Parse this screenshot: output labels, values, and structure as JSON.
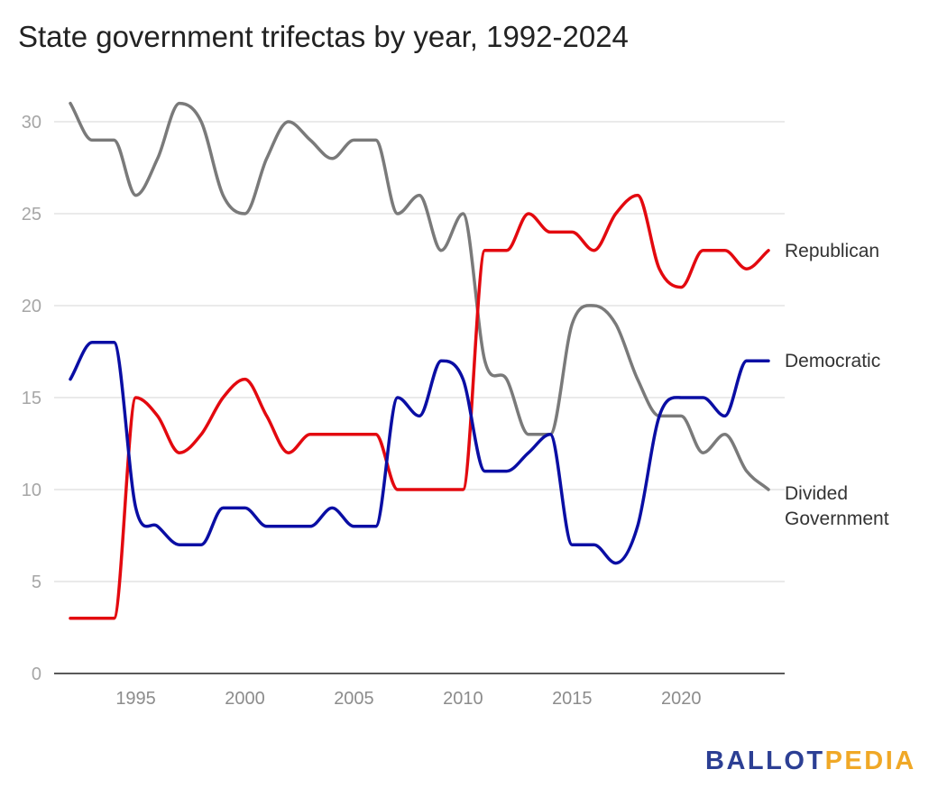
{
  "chart_data": {
    "type": "line",
    "title": "State government trifectas by year, 1992-2024",
    "xlabel": "",
    "ylabel": "",
    "x": [
      1992,
      1993,
      1994,
      1995,
      1996,
      1997,
      1998,
      1999,
      2000,
      2001,
      2002,
      2003,
      2004,
      2005,
      2006,
      2007,
      2008,
      2009,
      2010,
      2011,
      2012,
      2013,
      2014,
      2015,
      2016,
      2017,
      2018,
      2019,
      2020,
      2021,
      2022,
      2023,
      2024
    ],
    "xlim": [
      1992,
      2024
    ],
    "ylim": [
      0,
      32
    ],
    "x_ticks": [
      1995,
      2000,
      2005,
      2010,
      2015,
      2020
    ],
    "y_ticks": [
      0,
      5,
      10,
      15,
      20,
      25,
      30
    ],
    "grid": true,
    "legend": "labels at line ends, right",
    "series": [
      {
        "name": "Republican",
        "color": "#e3090f",
        "values": [
          3,
          3,
          3,
          15,
          14,
          12,
          13,
          15,
          16,
          14,
          12,
          13,
          13,
          13,
          13,
          10,
          10,
          10,
          10,
          23,
          23,
          25,
          24,
          24,
          23,
          25,
          26,
          22,
          21,
          23,
          23,
          22,
          23
        ]
      },
      {
        "name": "Democratic",
        "color": "#0a0ea4",
        "values": [
          16,
          18,
          18,
          9,
          8,
          7,
          7,
          9,
          9,
          8,
          8,
          8,
          9,
          8,
          8,
          15,
          14,
          17,
          16,
          11,
          11,
          12,
          13,
          7,
          7,
          6,
          8,
          14,
          15,
          15,
          14,
          17,
          17
        ]
      },
      {
        "name": "Divided\nGovernment",
        "label_lines": [
          "Divided",
          "Government"
        ],
        "color": "#7a7a7a",
        "values": [
          31,
          29,
          29,
          26,
          28,
          31,
          30,
          26,
          25,
          28,
          30,
          29,
          28,
          29,
          29,
          25,
          26,
          23,
          25,
          17,
          16,
          13,
          13,
          19,
          20,
          19,
          16,
          14,
          14,
          12,
          13,
          11,
          10
        ]
      }
    ]
  },
  "branding": {
    "logo_part1": "BALLOT",
    "logo_part2": "PEDIA",
    "color1": "#2c3f94",
    "color2": "#f0a826"
  }
}
